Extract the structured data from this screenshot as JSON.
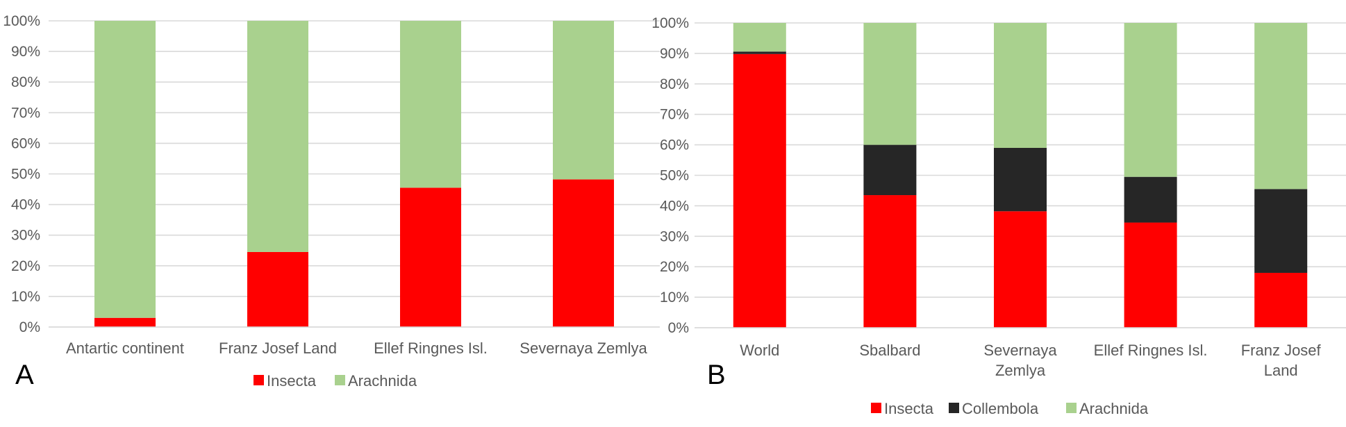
{
  "chart_data": [
    {
      "type": "bar",
      "stacked": true,
      "normalized": true,
      "panel_label": "A",
      "title": "",
      "xlabel": "",
      "ylabel": "",
      "ylim": [
        0,
        100
      ],
      "y_ticks": [
        "0%",
        "10%",
        "20%",
        "30%",
        "40%",
        "50%",
        "60%",
        "70%",
        "80%",
        "90%",
        "100%"
      ],
      "grid": true,
      "legend_position": "bottom",
      "categories": [
        "Antartic continent",
        "Franz Josef Land",
        "Ellef Ringnes Isl.",
        "Severnaya Zemlya"
      ],
      "series": [
        {
          "name": "Insecta",
          "color": "#ff0000",
          "values": [
            3,
            24.5,
            45.5,
            48.2
          ]
        },
        {
          "name": "Arachnida",
          "color": "#a9d18e",
          "values": [
            97,
            75.5,
            54.5,
            51.8
          ]
        }
      ]
    },
    {
      "type": "bar",
      "stacked": true,
      "normalized": true,
      "panel_label": "B",
      "title": "",
      "xlabel": "",
      "ylabel": "",
      "ylim": [
        0,
        100
      ],
      "y_ticks": [
        "0%",
        "10%",
        "20%",
        "30%",
        "40%",
        "50%",
        "60%",
        "70%",
        "80%",
        "90%",
        "100%"
      ],
      "grid": true,
      "legend_position": "bottom",
      "categories": [
        [
          "World"
        ],
        [
          "Sbalbard"
        ],
        [
          "Severnaya",
          "Zemlya"
        ],
        [
          "Ellef Ringnes Isl."
        ],
        [
          "Franz Josef",
          "Land"
        ]
      ],
      "series": [
        {
          "name": "Insecta",
          "color": "#ff0000",
          "values": [
            89.8,
            43.5,
            38.2,
            34.5,
            18
          ]
        },
        {
          "name": "Collembola",
          "color": "#262626",
          "values": [
            0.8,
            16.5,
            20.8,
            15,
            27.5
          ]
        },
        {
          "name": "Arachnida",
          "color": "#a9d18e",
          "values": [
            9.4,
            40,
            41,
            50.5,
            54.5
          ]
        }
      ]
    }
  ]
}
